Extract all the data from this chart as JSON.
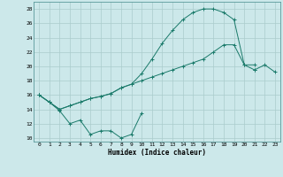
{
  "xlabel": "Humidex (Indice chaleur)",
  "background_color": "#cce8ea",
  "grid_color": "#aacccc",
  "line_color": "#1a7a6a",
  "xlim": [
    -0.5,
    23.5
  ],
  "ylim": [
    9.5,
    29.0
  ],
  "xticks": [
    0,
    1,
    2,
    3,
    4,
    5,
    6,
    7,
    8,
    9,
    10,
    11,
    12,
    13,
    14,
    15,
    16,
    17,
    18,
    19,
    20,
    21,
    22,
    23
  ],
  "yticks": [
    10,
    12,
    14,
    16,
    18,
    20,
    22,
    24,
    26,
    28
  ],
  "line1_y": [
    16,
    15,
    13.8,
    12,
    12.5,
    10.5,
    11,
    11,
    10,
    10.5,
    13.5,
    null,
    null,
    null,
    null,
    null,
    null,
    null,
    null,
    null,
    null,
    null,
    null,
    null
  ],
  "line2_y": [
    16,
    15,
    14,
    14.5,
    15.0,
    15.5,
    15.8,
    16.2,
    17.0,
    17.5,
    19.0,
    21.0,
    23.2,
    25.0,
    26.5,
    27.5,
    28.0,
    28.0,
    27.5,
    26.5,
    20.2,
    20.2,
    null,
    null
  ],
  "line3_y": [
    16,
    15,
    14,
    14.5,
    15.0,
    15.5,
    15.8,
    16.2,
    17.0,
    17.5,
    18.0,
    18.5,
    19.0,
    19.5,
    20.0,
    20.5,
    21.0,
    22.0,
    23.0,
    23.0,
    20.2,
    19.5,
    null,
    null
  ],
  "line4_y": [
    null,
    null,
    null,
    null,
    null,
    null,
    null,
    null,
    null,
    null,
    null,
    null,
    null,
    null,
    null,
    null,
    null,
    null,
    null,
    null,
    null,
    19.5,
    20.2,
    19.2
  ]
}
